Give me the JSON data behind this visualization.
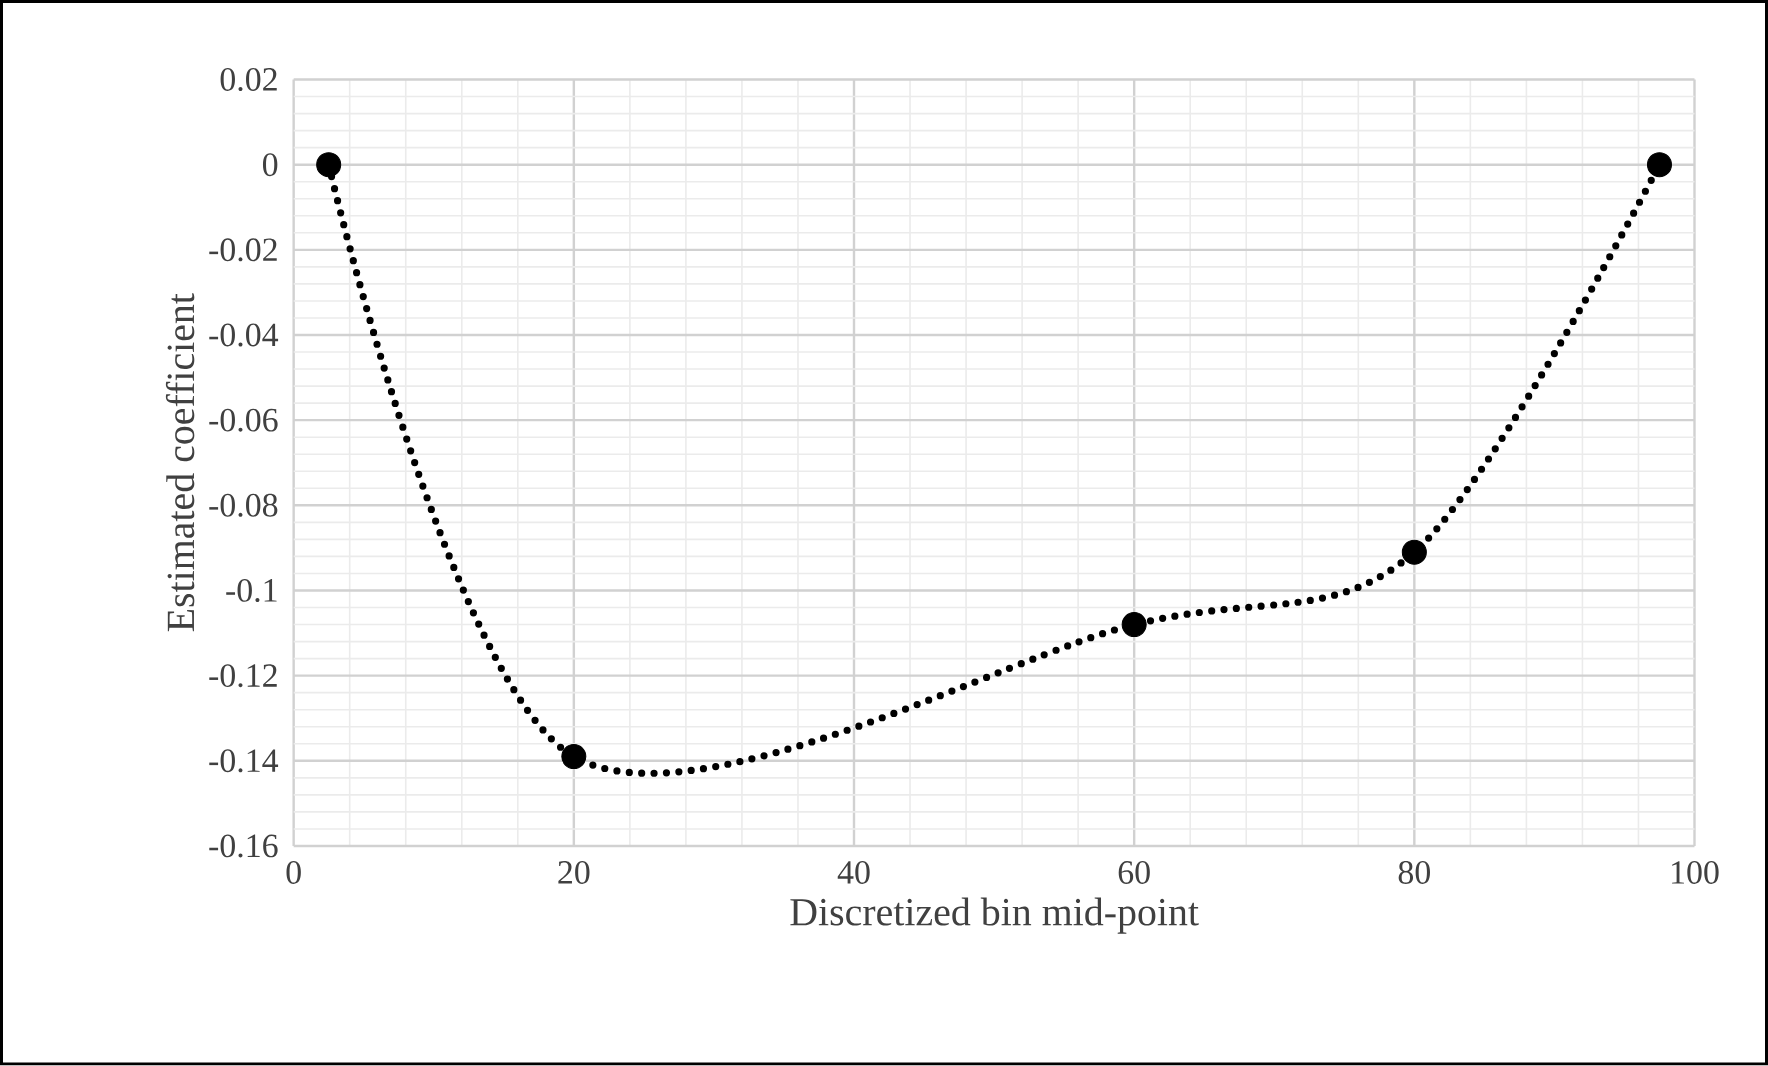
{
  "chart_data": {
    "type": "line",
    "xlabel": "Discretized bin mid-point",
    "ylabel": "Estimated coefficient",
    "x": [
      2.5,
      20,
      60,
      80,
      97.5
    ],
    "series": [
      {
        "color": "#000000",
        "values": [
          0,
          -0.139,
          -0.108,
          -0.091,
          0
        ]
      }
    ],
    "xlim": [
      0,
      100
    ],
    "xticks": [
      0,
      20,
      40,
      60,
      80,
      100
    ],
    "ylim": [
      -0.16,
      0.02
    ],
    "yticks": [
      -0.16,
      -0.14,
      -0.12,
      -0.1,
      -0.08,
      -0.06,
      -0.04,
      -0.02,
      0,
      0.02
    ],
    "grid": true,
    "marker": "circle",
    "line_style": "dotted"
  }
}
